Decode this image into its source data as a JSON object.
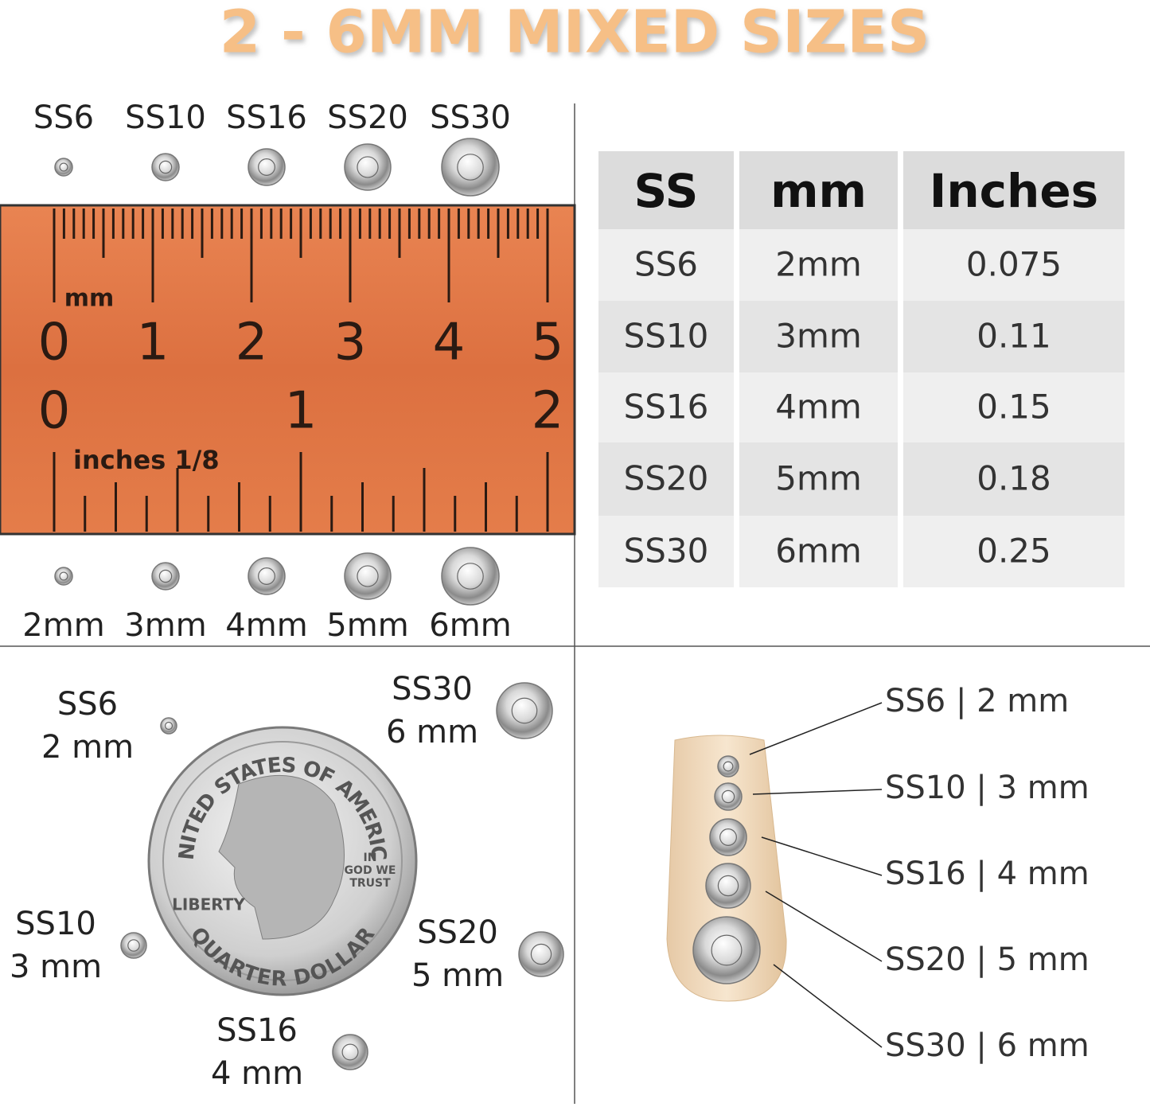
{
  "header": {
    "title": "2 - 6MM MIXED SIZES"
  },
  "ruler": {
    "sizes": [
      "SS6",
      "SS10",
      "SS16",
      "SS20",
      "SS30"
    ],
    "mm_labels": [
      "2mm",
      "3mm",
      "4mm",
      "5mm",
      "6mm"
    ],
    "mm_unit": "mm",
    "cm_numbers": [
      "0",
      "1",
      "2",
      "3",
      "4",
      "5"
    ],
    "inch_numbers": [
      "0",
      "1",
      "2"
    ],
    "inch_unit": "inches 1/8"
  },
  "table": {
    "columns": [
      "SS",
      "mm",
      "Inches"
    ],
    "rows": [
      [
        "SS6",
        "2mm",
        "0.075"
      ],
      [
        "SS10",
        "3mm",
        "0.11"
      ],
      [
        "SS16",
        "4mm",
        "0.15"
      ],
      [
        "SS20",
        "5mm",
        "0.18"
      ],
      [
        "SS30",
        "6mm",
        "0.25"
      ]
    ]
  },
  "coin": {
    "labels": [
      [
        "SS6",
        "2 mm"
      ],
      [
        "SS10",
        "3 mm"
      ],
      [
        "SS16",
        "4 mm"
      ],
      [
        "SS20",
        "5 mm"
      ],
      [
        "SS30",
        "6 mm"
      ]
    ],
    "inscriptions": {
      "top": "UNITED STATES OF AMERICA",
      "bottom": "QUARTER DOLLAR",
      "left": "LIBERTY",
      "motto": [
        "IN",
        "GOD WE",
        "TRUST"
      ]
    }
  },
  "nail": {
    "labels": [
      "SS6 | 2 mm",
      "SS10 | 3 mm",
      "SS16 | 4 mm",
      "SS20 | 5 mm",
      "SS30 | 6 mm"
    ]
  }
}
